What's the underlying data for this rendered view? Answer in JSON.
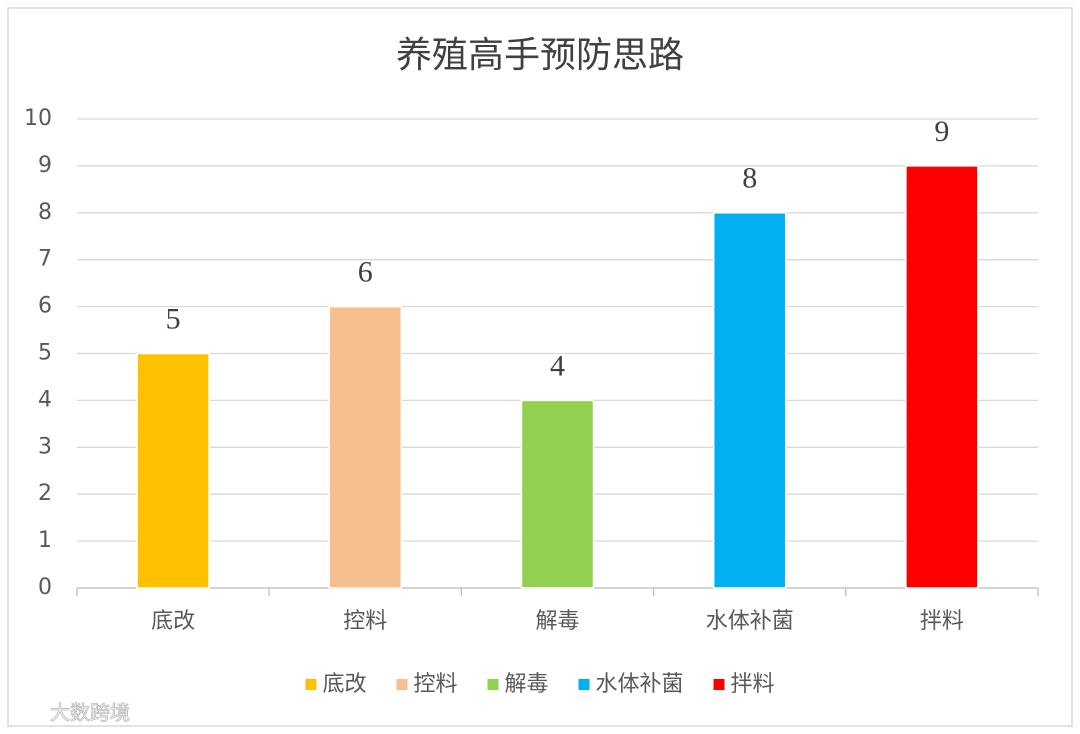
{
  "chart_data": {
    "type": "bar",
    "title": "养殖高手预防思路",
    "categories": [
      "底改",
      "控料",
      "解毒",
      "水体补菌",
      "拌料"
    ],
    "values": [
      5,
      6,
      4,
      8,
      9
    ],
    "colors": [
      "#ffc000",
      "#f8bf8e",
      "#92d050",
      "#00b0f0",
      "#ff0000"
    ],
    "ylim": [
      0,
      10
    ],
    "yticks": [
      0,
      1,
      2,
      3,
      4,
      5,
      6,
      7,
      8,
      9,
      10
    ],
    "grid": true,
    "legend": "bottom"
  },
  "watermark": "大数跨境"
}
